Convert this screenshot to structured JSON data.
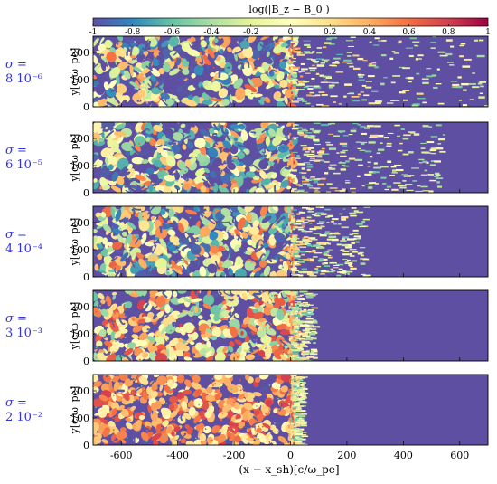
{
  "chart_data": {
    "type": "heatmap",
    "colorbar": {
      "label": "log(|B_z − B_0|)",
      "min": -1,
      "max": 1,
      "ticks": [
        "-1",
        "-0.8",
        "-0.6",
        "-0.4",
        "-0.2",
        "0",
        "0.2",
        "0.4",
        "0.6",
        "0.8",
        "1"
      ],
      "colormap": [
        "#5e4fa2",
        "#3288bd",
        "#66c2a5",
        "#abdda4",
        "#e6f598",
        "#ffffbf",
        "#fee08b",
        "#fdae61",
        "#f46d43",
        "#d53e4f",
        "#9e0142"
      ]
    },
    "xlabel": "(x − x_sh)[c/ω_pe]",
    "ylabel": "y[c/ω_pe]",
    "xlim": [
      -700,
      700
    ],
    "ylim": [
      0,
      260
    ],
    "x_ticks": [
      "-600",
      "-400",
      "-200",
      "0",
      "200",
      "400",
      "600"
    ],
    "y_ticks": [
      "0",
      "100",
      "200"
    ],
    "panels": [
      {
        "sigma_label": "σ =",
        "sigma_value": "8 10⁻⁶",
        "sigma": 8e-06,
        "upstream_edge": 760,
        "background_level": 0.35,
        "turbulence": 0.95
      },
      {
        "sigma_label": "σ =",
        "sigma_value": "6 10⁻⁵",
        "sigma": 6e-05,
        "upstream_edge": 540,
        "background_level": 0.35,
        "turbulence": 0.9
      },
      {
        "sigma_label": "σ =",
        "sigma_value": "4 10⁻⁴",
        "sigma": 0.0004,
        "upstream_edge": 260,
        "background_level": 0.4,
        "turbulence": 0.85
      },
      {
        "sigma_label": "σ =",
        "sigma_value": "3 10⁻³",
        "sigma": 0.003,
        "upstream_edge": 80,
        "background_level": 0.55,
        "turbulence": 0.7
      },
      {
        "sigma_label": "σ =",
        "sigma_value": "2 10⁻²",
        "sigma": 0.02,
        "upstream_edge": 40,
        "background_level": 0.7,
        "turbulence": 0.4
      }
    ]
  }
}
